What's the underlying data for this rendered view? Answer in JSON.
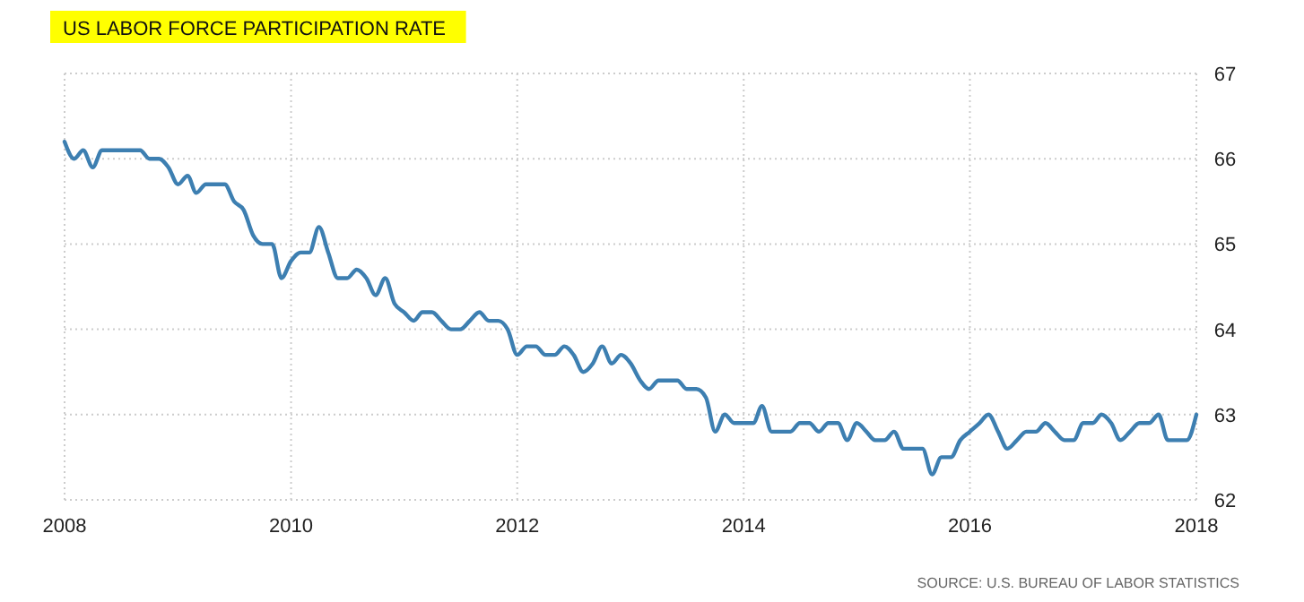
{
  "chart_data": {
    "type": "line",
    "title": "US LABOR FORCE PARTICIPATION RATE",
    "annotations": [
      "SOURCE: U.S. BUREAU OF LABOR STATISTICS"
    ],
    "x": [
      "2008-01",
      "2008-02",
      "2008-03",
      "2008-04",
      "2008-05",
      "2008-06",
      "2008-07",
      "2008-08",
      "2008-09",
      "2008-10",
      "2008-11",
      "2008-12",
      "2009-01",
      "2009-02",
      "2009-03",
      "2009-04",
      "2009-05",
      "2009-06",
      "2009-07",
      "2009-08",
      "2009-09",
      "2009-10",
      "2009-11",
      "2009-12",
      "2010-01",
      "2010-02",
      "2010-03",
      "2010-04",
      "2010-05",
      "2010-06",
      "2010-07",
      "2010-08",
      "2010-09",
      "2010-10",
      "2010-11",
      "2010-12",
      "2011-01",
      "2011-02",
      "2011-03",
      "2011-04",
      "2011-05",
      "2011-06",
      "2011-07",
      "2011-08",
      "2011-09",
      "2011-10",
      "2011-11",
      "2011-12",
      "2012-01",
      "2012-02",
      "2012-03",
      "2012-04",
      "2012-05",
      "2012-06",
      "2012-07",
      "2012-08",
      "2012-09",
      "2012-10",
      "2012-11",
      "2012-12",
      "2013-01",
      "2013-02",
      "2013-03",
      "2013-04",
      "2013-05",
      "2013-06",
      "2013-07",
      "2013-08",
      "2013-09",
      "2013-10",
      "2013-11",
      "2013-12",
      "2014-01",
      "2014-02",
      "2014-03",
      "2014-04",
      "2014-05",
      "2014-06",
      "2014-07",
      "2014-08",
      "2014-09",
      "2014-10",
      "2014-11",
      "2014-12",
      "2015-01",
      "2015-02",
      "2015-03",
      "2015-04",
      "2015-05",
      "2015-06",
      "2015-07",
      "2015-08",
      "2015-09",
      "2015-10",
      "2015-11",
      "2015-12",
      "2016-01",
      "2016-02",
      "2016-03",
      "2016-04",
      "2016-05",
      "2016-06",
      "2016-07",
      "2016-08",
      "2016-09",
      "2016-10",
      "2016-11",
      "2016-12",
      "2017-01",
      "2017-02",
      "2017-03",
      "2017-04",
      "2017-05",
      "2017-06",
      "2017-07",
      "2017-08",
      "2017-09",
      "2017-10",
      "2017-11",
      "2017-12",
      "2018-01"
    ],
    "series": [
      {
        "color": "#3d7fb1",
        "values": [
          66.2,
          66.0,
          66.1,
          65.9,
          66.1,
          66.1,
          66.1,
          66.1,
          66.1,
          66.0,
          66.0,
          65.9,
          65.7,
          65.8,
          65.6,
          65.7,
          65.7,
          65.7,
          65.5,
          65.4,
          65.1,
          65.0,
          65.0,
          64.6,
          64.8,
          64.9,
          64.9,
          65.2,
          64.9,
          64.6,
          64.6,
          64.7,
          64.6,
          64.4,
          64.6,
          64.3,
          64.2,
          64.1,
          64.2,
          64.2,
          64.1,
          64.0,
          64.0,
          64.1,
          64.2,
          64.1,
          64.1,
          64.0,
          63.7,
          63.8,
          63.8,
          63.7,
          63.7,
          63.8,
          63.7,
          63.5,
          63.6,
          63.8,
          63.6,
          63.7,
          63.6,
          63.4,
          63.3,
          63.4,
          63.4,
          63.4,
          63.3,
          63.3,
          63.2,
          62.8,
          63.0,
          62.9,
          62.9,
          62.9,
          63.1,
          62.8,
          62.8,
          62.8,
          62.9,
          62.9,
          62.8,
          62.9,
          62.9,
          62.7,
          62.9,
          62.8,
          62.7,
          62.7,
          62.8,
          62.6,
          62.6,
          62.6,
          62.3,
          62.5,
          62.5,
          62.7,
          62.8,
          62.9,
          63.0,
          62.8,
          62.6,
          62.7,
          62.8,
          62.8,
          62.9,
          62.8,
          62.7,
          62.7,
          62.9,
          62.9,
          63.0,
          62.9,
          62.7,
          62.8,
          62.9,
          62.9,
          63.0,
          62.7,
          62.7,
          62.7,
          63.0
        ]
      }
    ],
    "xlim": [
      "2008-01",
      "2018-01"
    ],
    "xticks": [
      {
        "value": "2008-01",
        "label": "2008"
      },
      {
        "value": "2010-01",
        "label": "2010"
      },
      {
        "value": "2012-01",
        "label": "2012"
      },
      {
        "value": "2014-01",
        "label": "2014"
      },
      {
        "value": "2016-01",
        "label": "2016"
      },
      {
        "value": "2018-01",
        "label": "2018"
      }
    ],
    "ylim": [
      62,
      67
    ],
    "yticks": [
      62,
      63,
      64,
      65,
      66,
      67
    ],
    "grid": true
  }
}
